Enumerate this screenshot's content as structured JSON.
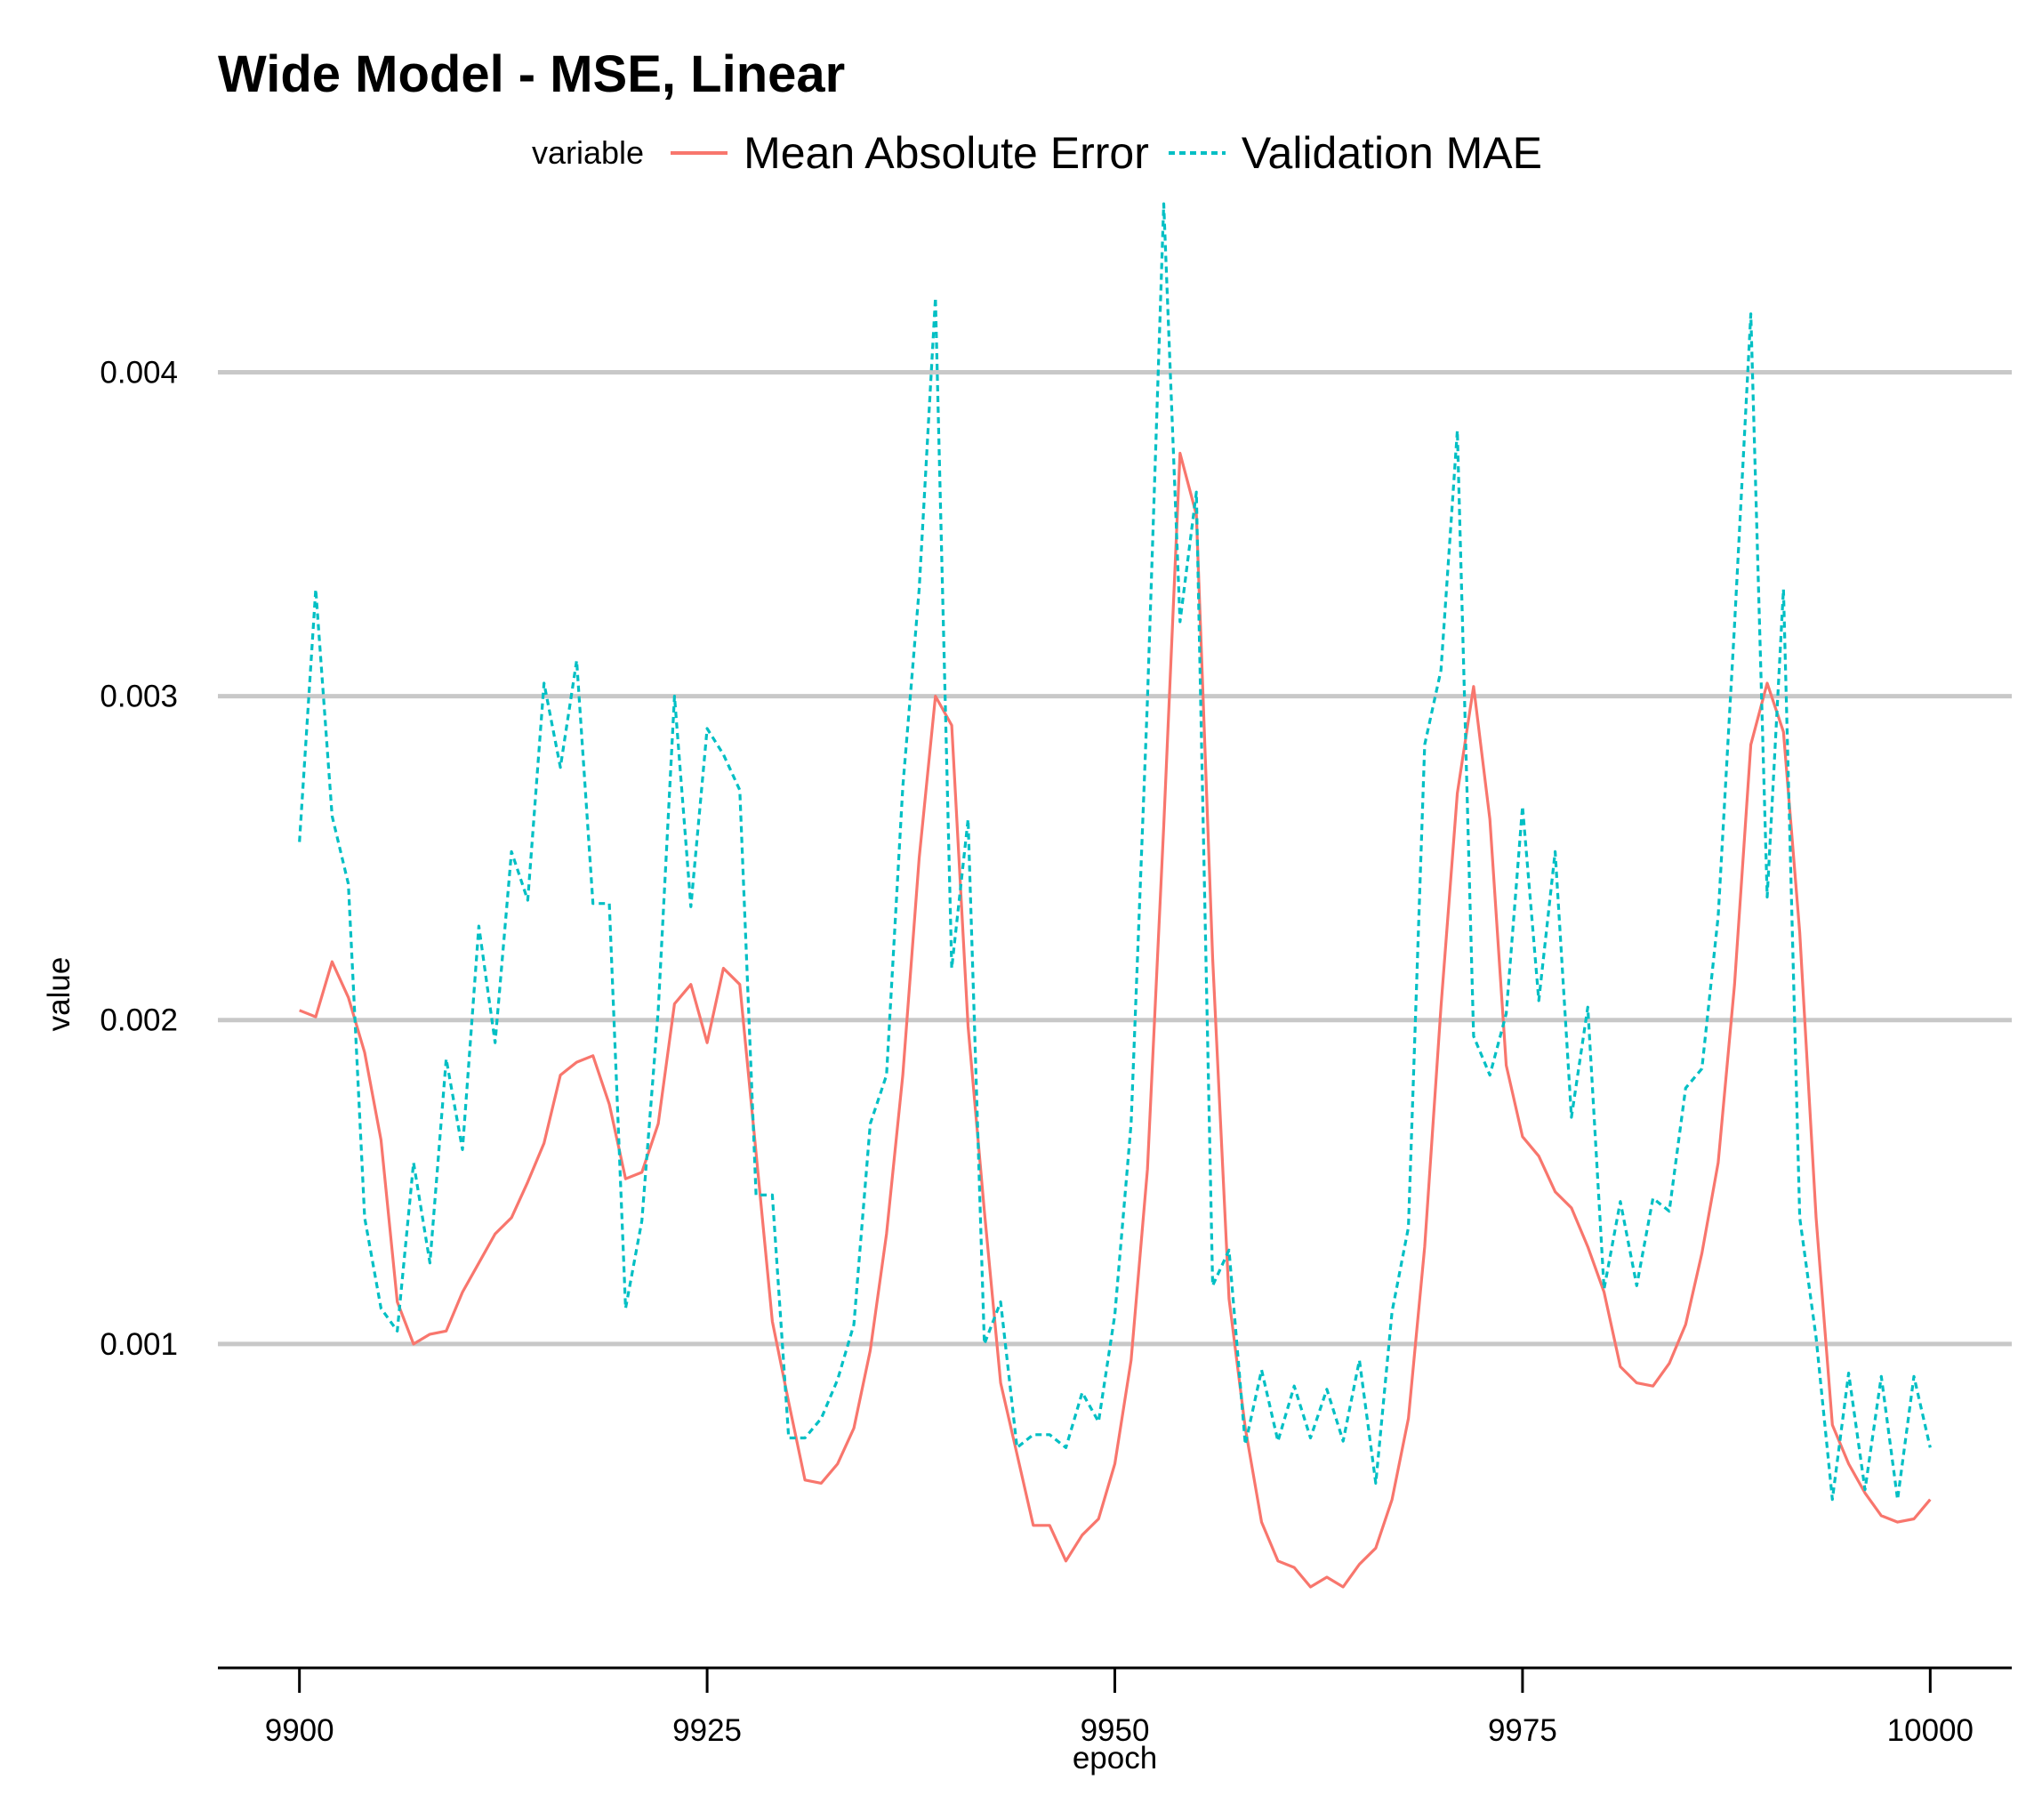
{
  "chart_data": {
    "type": "line",
    "title": "Wide Model - MSE, Linear",
    "xlabel": "epoch",
    "ylabel": "value",
    "xlim": [
      9895,
      10005
    ],
    "ylim": [
      0.0,
      0.0046
    ],
    "xticks": [
      9900,
      9925,
      9950,
      9975,
      10000
    ],
    "xtick_labels": [
      "9900",
      "9925",
      "9950",
      "9975",
      "10000"
    ],
    "yticks": [
      0.001,
      0.002,
      0.003,
      0.004
    ],
    "ytick_labels": [
      "0.001",
      "0.002",
      "0.003",
      "0.004"
    ],
    "grid": "horizontal major",
    "legend": {
      "title": "variable",
      "placement": "top",
      "entries": [
        "Mean Absolute Error",
        "Validation MAE"
      ]
    },
    "x": [
      9900,
      9901,
      9902,
      9903,
      9904,
      9905,
      9906,
      9907,
      9908,
      9909,
      9910,
      9911,
      9912,
      9913,
      9914,
      9915,
      9916,
      9917,
      9918,
      9919,
      9920,
      9921,
      9922,
      9923,
      9924,
      9925,
      9926,
      9927,
      9928,
      9929,
      9930,
      9931,
      9932,
      9933,
      9934,
      9935,
      9936,
      9937,
      9938,
      9939,
      9940,
      9941,
      9942,
      9943,
      9944,
      9945,
      9946,
      9947,
      9948,
      9949,
      9950,
      9951,
      9952,
      9953,
      9954,
      9955,
      9956,
      9957,
      9958,
      9959,
      9960,
      9961,
      9962,
      9963,
      9964,
      9965,
      9966,
      9967,
      9968,
      9969,
      9970,
      9971,
      9972,
      9973,
      9974,
      9975,
      9976,
      9977,
      9978,
      9979,
      9980,
      9981,
      9982,
      9983,
      9984,
      9985,
      9986,
      9987,
      9988,
      9989,
      9990,
      9991,
      9992,
      9993,
      9994,
      9995,
      9996,
      9997,
      9998,
      9999,
      10000
    ],
    "series": [
      {
        "name": "Mean Absolute Error",
        "color": "#F8766D",
        "linestyle": "solid",
        "values": [
          0.00203,
          0.00201,
          0.00218,
          0.00207,
          0.0019,
          0.00163,
          0.00113,
          0.001,
          0.00103,
          0.00104,
          0.00116,
          0.00125,
          0.00134,
          0.00139,
          0.0015,
          0.00162,
          0.00183,
          0.00187,
          0.00189,
          0.00174,
          0.00151,
          0.00153,
          0.00168,
          0.00205,
          0.00211,
          0.00193,
          0.00216,
          0.00211,
          0.00159,
          0.00107,
          0.00082,
          0.00058,
          0.00057,
          0.00063,
          0.00074,
          0.00098,
          0.00134,
          0.00183,
          0.0025,
          0.003,
          0.00291,
          0.00198,
          0.00141,
          0.00088,
          0.00066,
          0.00044,
          0.00044,
          0.00033,
          0.00041,
          0.00046,
          0.00063,
          0.00095,
          0.00154,
          0.0026,
          0.00375,
          0.00356,
          0.00219,
          0.00114,
          0.00074,
          0.00045,
          0.00033,
          0.00031,
          0.00025,
          0.00028,
          0.00025,
          0.00032,
          0.00037,
          0.00052,
          0.00077,
          0.0013,
          0.00204,
          0.0027,
          0.00303,
          0.00262,
          0.00186,
          0.00164,
          0.00158,
          0.00147,
          0.00142,
          0.0013,
          0.00116,
          0.00093,
          0.00088,
          0.00087,
          0.00094,
          0.00106,
          0.00128,
          0.00156,
          0.00211,
          0.00285,
          0.00304,
          0.00289,
          0.00227,
          0.00139,
          0.00075,
          0.00063,
          0.00054,
          0.00047,
          0.00045,
          0.00046,
          0.00052
        ]
      },
      {
        "name": "Validation MAE",
        "color": "#00BFC4",
        "linestyle": "dashed",
        "values": [
          0.00255,
          0.00333,
          0.00263,
          0.00242,
          0.00139,
          0.00111,
          0.00104,
          0.00156,
          0.00125,
          0.00188,
          0.0016,
          0.00229,
          0.00193,
          0.00252,
          0.00237,
          0.00304,
          0.00278,
          0.00311,
          0.00236,
          0.00236,
          0.00111,
          0.00138,
          0.00203,
          0.003,
          0.00235,
          0.0029,
          0.00282,
          0.00271,
          0.00146,
          0.00146,
          0.00071,
          0.00071,
          0.00077,
          0.00089,
          0.00106,
          0.00168,
          0.00183,
          0.00272,
          0.00333,
          0.00423,
          0.00216,
          0.00262,
          0.001,
          0.00113,
          0.00068,
          0.00072,
          0.00072,
          0.00068,
          0.00085,
          0.00076,
          0.00109,
          0.00168,
          0.00299,
          0.00452,
          0.00323,
          0.00363,
          0.00118,
          0.00129,
          0.00069,
          0.00092,
          0.0007,
          0.00087,
          0.00071,
          0.00086,
          0.0007,
          0.00095,
          0.00057,
          0.0011,
          0.00136,
          0.00285,
          0.00308,
          0.00382,
          0.00195,
          0.00183,
          0.00202,
          0.00266,
          0.00206,
          0.00252,
          0.0017,
          0.00204,
          0.00117,
          0.00144,
          0.00118,
          0.00145,
          0.00141,
          0.00179,
          0.00185,
          0.00232,
          0.00322,
          0.00418,
          0.00238,
          0.00333,
          0.00139,
          0.00102,
          0.00052,
          0.00091,
          0.00055,
          0.0009,
          0.00052,
          0.0009,
          0.00068
        ]
      }
    ]
  }
}
